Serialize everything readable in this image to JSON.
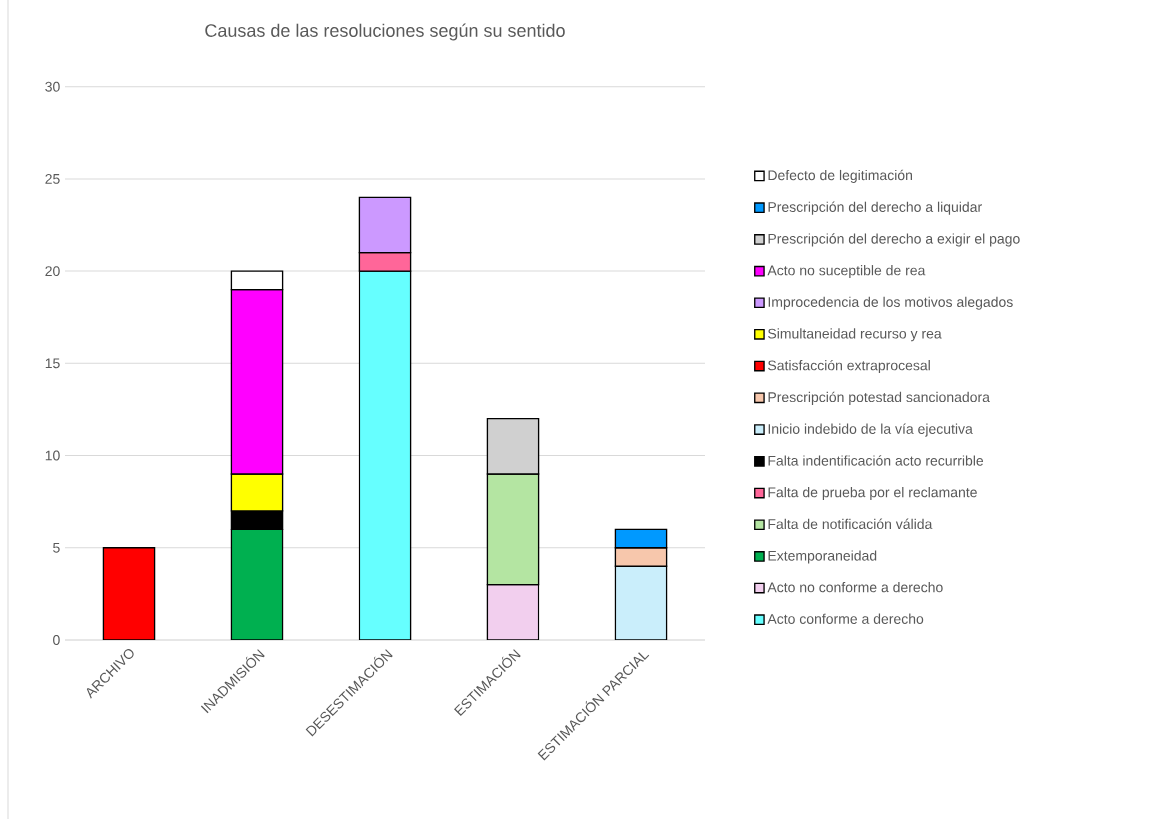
{
  "chart_data": {
    "type": "bar",
    "stacked": true,
    "title": "Causas de las resoluciones según su sentido",
    "categories": [
      "ARCHIVO",
      "INADMISIÓN",
      "DESESTIMACIÓN",
      "ESTIMACIÓN",
      "ESTIMACIÓN PARCIAL"
    ],
    "series": [
      {
        "name": "Acto conforme a derecho",
        "color": "#66ffff",
        "values": [
          null,
          null,
          20,
          null,
          null
        ]
      },
      {
        "name": "Acto no conforme a derecho",
        "color": "#f2cfee",
        "values": [
          null,
          null,
          null,
          3,
          null
        ]
      },
      {
        "name": "Extemporaneidad",
        "color": "#00b050",
        "values": [
          null,
          6,
          null,
          null,
          null
        ]
      },
      {
        "name": "Falta de notificación válida",
        "color": "#b4e5a2",
        "values": [
          null,
          null,
          null,
          6,
          null
        ]
      },
      {
        "name": "Falta de prueba por el reclamante",
        "color": "#ff6699",
        "values": [
          null,
          null,
          1,
          null,
          null
        ]
      },
      {
        "name": "Falta indentificación acto recurrible",
        "color": "#000000",
        "values": [
          null,
          1,
          null,
          null,
          null
        ]
      },
      {
        "name": "Inicio indebido de la vía ejecutiva",
        "color": "#caeefb",
        "values": [
          null,
          null,
          null,
          null,
          4
        ]
      },
      {
        "name": "Prescripción potestad sancionadora",
        "color": "#f7c7ac",
        "values": [
          null,
          null,
          null,
          null,
          1
        ]
      },
      {
        "name": "Satisfacción extraprocesal",
        "color": "#ff0000",
        "values": [
          5,
          null,
          null,
          null,
          null
        ]
      },
      {
        "name": "Simultaneidad recurso y rea",
        "color": "#ffff00",
        "values": [
          null,
          2,
          null,
          null,
          null
        ]
      },
      {
        "name": "Improcedencia de los motivos alegados",
        "color": "#cc99ff",
        "values": [
          null,
          null,
          3,
          null,
          null
        ]
      },
      {
        "name": "Acto no suceptible de rea",
        "color": "#ff00ff",
        "values": [
          null,
          10,
          null,
          null,
          null
        ]
      },
      {
        "name": "Prescripción del derecho a exigir el pago",
        "color": "#d0d0d0",
        "values": [
          null,
          null,
          null,
          3,
          null
        ]
      },
      {
        "name": "Prescripción del derecho a liquidar",
        "color": "#0099ff",
        "values": [
          null,
          null,
          null,
          null,
          1
        ]
      },
      {
        "name": "Defecto de legitimación",
        "color": "#ffffff",
        "values": [
          null,
          1,
          null,
          null,
          null
        ]
      }
    ],
    "ylim": [
      0,
      30
    ],
    "yticks": [
      0,
      5,
      10,
      15,
      20,
      25,
      30
    ],
    "grid": "y",
    "legend": "right"
  }
}
